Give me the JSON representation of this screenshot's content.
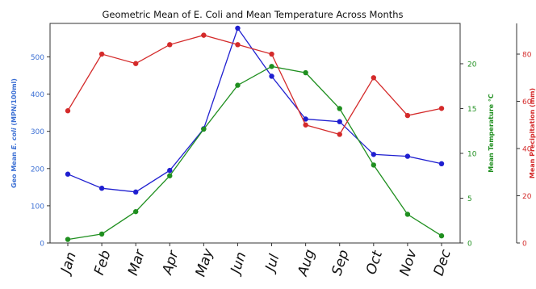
{
  "chart_data": {
    "type": "line",
    "title": "Geometric Mean of E. Coli and Mean Temperature Across Months",
    "categories": [
      "Jan",
      "Feb",
      "Mar",
      "Apr",
      "May",
      "Jun",
      "Jul",
      "Aug",
      "Sep",
      "Oct",
      "Nov",
      "Dec"
    ],
    "axes": {
      "left": {
        "label_parts": [
          "Geo Mean ",
          "E. coli",
          " (MPN/100ml)"
        ],
        "ylim": [
          0,
          590
        ],
        "ticks": [
          0,
          100,
          200,
          300,
          400,
          500
        ],
        "color": "#3b6fd4"
      },
      "right1": {
        "label": "Mean Temperature °C",
        "ylim": [
          0,
          24.5
        ],
        "ticks": [
          0,
          5,
          10,
          15,
          20
        ],
        "color": "#1f8f1f"
      },
      "right2": {
        "label": "Mean Precipitation (mm)",
        "ylim": [
          0,
          93
        ],
        "ticks": [
          0,
          20,
          40,
          60,
          80
        ],
        "color": "#d42a2a"
      }
    },
    "series": [
      {
        "axis": "left",
        "color": "#1f1fd0",
        "values": [
          185,
          147,
          137,
          195,
          307,
          577,
          448,
          333,
          326,
          238,
          233,
          213
        ]
      },
      {
        "axis": "right1",
        "color": "#1f8f1f",
        "values": [
          0.4,
          1.0,
          3.5,
          7.5,
          12.7,
          17.6,
          19.7,
          19.0,
          15.0,
          8.7,
          3.2,
          0.8
        ]
      },
      {
        "axis": "right2",
        "color": "#d42a2a",
        "values": [
          56,
          80,
          76,
          84,
          88,
          84,
          80,
          50,
          46,
          70,
          54,
          57
        ]
      }
    ],
    "grid": false
  }
}
